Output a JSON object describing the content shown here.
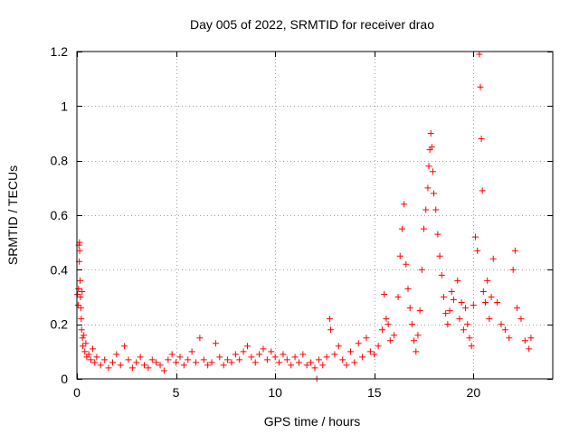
{
  "chart_data": {
    "type": "scatter",
    "title": "Day 005 of 2022, SRMTID for receiver drao",
    "xlabel": "GPS time / hours",
    "ylabel": "SRMTID / TECUs",
    "xlim": [
      0,
      24
    ],
    "ylim": [
      0,
      1.2
    ],
    "x_ticks": [
      0,
      5,
      10,
      15,
      20
    ],
    "x_tick_labels": [
      "0",
      "5",
      "10",
      "15",
      "20"
    ],
    "y_ticks": [
      0,
      0.2,
      0.4,
      0.6,
      0.8,
      1.0,
      1.2
    ],
    "y_tick_labels": [
      "0",
      "0.2",
      "0.4",
      "0.6",
      "0.8",
      "1",
      "1.2"
    ],
    "grid": true,
    "marker": "+",
    "series": [
      {
        "name": "SRMTID",
        "color": "#ff0000",
        "points": [
          [
            0.03,
            0.31
          ],
          [
            0.06,
            0.27
          ],
          [
            0.08,
            0.33
          ],
          [
            0.1,
            0.49
          ],
          [
            0.12,
            0.43
          ],
          [
            0.13,
            0.5
          ],
          [
            0.14,
            0.47
          ],
          [
            0.16,
            0.36
          ],
          [
            0.18,
            0.3
          ],
          [
            0.2,
            0.26
          ],
          [
            0.22,
            0.22
          ],
          [
            0.24,
            0.18
          ],
          [
            0.26,
            0.32
          ],
          [
            0.28,
            0.15
          ],
          [
            0.3,
            0.12
          ],
          [
            0.35,
            0.16
          ],
          [
            0.4,
            0.1
          ],
          [
            0.45,
            0.13
          ],
          [
            0.5,
            0.08
          ],
          [
            0.6,
            0.09
          ],
          [
            0.7,
            0.07
          ],
          [
            0.8,
            0.11
          ],
          [
            0.9,
            0.06
          ],
          [
            1.0,
            0.08
          ],
          [
            1.2,
            0.05
          ],
          [
            1.4,
            0.07
          ],
          [
            1.6,
            0.04
          ],
          [
            1.8,
            0.06
          ],
          [
            2.0,
            0.09
          ],
          [
            2.2,
            0.05
          ],
          [
            2.4,
            0.12
          ],
          [
            2.6,
            0.07
          ],
          [
            2.8,
            0.04
          ],
          [
            3.0,
            0.06
          ],
          [
            3.2,
            0.08
          ],
          [
            3.4,
            0.05
          ],
          [
            3.6,
            0.04
          ],
          [
            3.8,
            0.07
          ],
          [
            4.0,
            0.06
          ],
          [
            4.2,
            0.05
          ],
          [
            4.4,
            0.03
          ],
          [
            4.6,
            0.07
          ],
          [
            4.8,
            0.09
          ],
          [
            5.0,
            0.06
          ],
          [
            5.2,
            0.08
          ],
          [
            5.4,
            0.05
          ],
          [
            5.6,
            0.07
          ],
          [
            5.8,
            0.1
          ],
          [
            6.0,
            0.06
          ],
          [
            6.2,
            0.15
          ],
          [
            6.4,
            0.07
          ],
          [
            6.6,
            0.05
          ],
          [
            6.8,
            0.06
          ],
          [
            7.0,
            0.13
          ],
          [
            7.2,
            0.08
          ],
          [
            7.4,
            0.05
          ],
          [
            7.6,
            0.07
          ],
          [
            7.8,
            0.06
          ],
          [
            8.0,
            0.09
          ],
          [
            8.2,
            0.07
          ],
          [
            8.4,
            0.1
          ],
          [
            8.6,
            0.12
          ],
          [
            8.8,
            0.08
          ],
          [
            9.0,
            0.06
          ],
          [
            9.2,
            0.09
          ],
          [
            9.4,
            0.11
          ],
          [
            9.6,
            0.07
          ],
          [
            9.8,
            0.1
          ],
          [
            10.0,
            0.08
          ],
          [
            10.2,
            0.06
          ],
          [
            10.4,
            0.09
          ],
          [
            10.6,
            0.07
          ],
          [
            10.8,
            0.05
          ],
          [
            11.0,
            0.08
          ],
          [
            11.2,
            0.06
          ],
          [
            11.4,
            0.09
          ],
          [
            11.6,
            0.05
          ],
          [
            11.8,
            0.06
          ],
          [
            12.0,
            0.04
          ],
          [
            12.1,
            0.0
          ],
          [
            12.2,
            0.07
          ],
          [
            12.4,
            0.05
          ],
          [
            12.6,
            0.08
          ],
          [
            12.75,
            0.22
          ],
          [
            12.8,
            0.18
          ],
          [
            13.0,
            0.09
          ],
          [
            13.2,
            0.12
          ],
          [
            13.4,
            0.07
          ],
          [
            13.6,
            0.05
          ],
          [
            13.8,
            0.1
          ],
          [
            14.0,
            0.06
          ],
          [
            14.2,
            0.13
          ],
          [
            14.4,
            0.08
          ],
          [
            14.6,
            0.15
          ],
          [
            14.8,
            0.1
          ],
          [
            15.0,
            0.09
          ],
          [
            15.2,
            0.12
          ],
          [
            15.4,
            0.18
          ],
          [
            15.5,
            0.31
          ],
          [
            15.6,
            0.22
          ],
          [
            15.7,
            0.2
          ],
          [
            15.8,
            0.14
          ],
          [
            16.0,
            0.16
          ],
          [
            16.2,
            0.3
          ],
          [
            16.3,
            0.45
          ],
          [
            16.4,
            0.55
          ],
          [
            16.5,
            0.64
          ],
          [
            16.6,
            0.42
          ],
          [
            16.7,
            0.33
          ],
          [
            16.8,
            0.26
          ],
          [
            16.9,
            0.2
          ],
          [
            17.0,
            0.14
          ],
          [
            17.1,
            0.1
          ],
          [
            17.2,
            0.16
          ],
          [
            17.3,
            0.25
          ],
          [
            17.4,
            0.4
          ],
          [
            17.5,
            0.55
          ],
          [
            17.6,
            0.62
          ],
          [
            17.7,
            0.7
          ],
          [
            17.75,
            0.78
          ],
          [
            17.8,
            0.84
          ],
          [
            17.85,
            0.9
          ],
          [
            17.9,
            0.85
          ],
          [
            17.95,
            0.76
          ],
          [
            18.0,
            0.68
          ],
          [
            18.1,
            0.62
          ],
          [
            18.2,
            0.53
          ],
          [
            18.3,
            0.45
          ],
          [
            18.4,
            0.38
          ],
          [
            18.5,
            0.3
          ],
          [
            18.6,
            0.24
          ],
          [
            18.7,
            0.2
          ],
          [
            18.8,
            0.25
          ],
          [
            18.9,
            0.32
          ],
          [
            19.0,
            0.29
          ],
          [
            19.2,
            0.36
          ],
          [
            19.3,
            0.22
          ],
          [
            19.4,
            0.28
          ],
          [
            19.5,
            0.18
          ],
          [
            19.6,
            0.26
          ],
          [
            19.7,
            0.2
          ],
          [
            19.8,
            0.15
          ],
          [
            19.9,
            0.12
          ],
          [
            20.0,
            0.27
          ],
          [
            20.1,
            0.52
          ],
          [
            20.2,
            0.47
          ],
          [
            20.3,
            1.19
          ],
          [
            20.35,
            1.07
          ],
          [
            20.4,
            0.88
          ],
          [
            20.45,
            0.69
          ],
          [
            20.5,
            0.32
          ],
          [
            20.6,
            0.28
          ],
          [
            20.7,
            0.36
          ],
          [
            20.8,
            0.22
          ],
          [
            20.9,
            0.3
          ],
          [
            21.0,
            0.44
          ],
          [
            21.2,
            0.28
          ],
          [
            21.4,
            0.2
          ],
          [
            21.6,
            0.18
          ],
          [
            21.8,
            0.15
          ],
          [
            22.0,
            0.4
          ],
          [
            22.1,
            0.47
          ],
          [
            22.2,
            0.26
          ],
          [
            22.4,
            0.22
          ],
          [
            22.6,
            0.14
          ],
          [
            22.8,
            0.11
          ],
          [
            22.9,
            0.15
          ]
        ]
      }
    ]
  }
}
